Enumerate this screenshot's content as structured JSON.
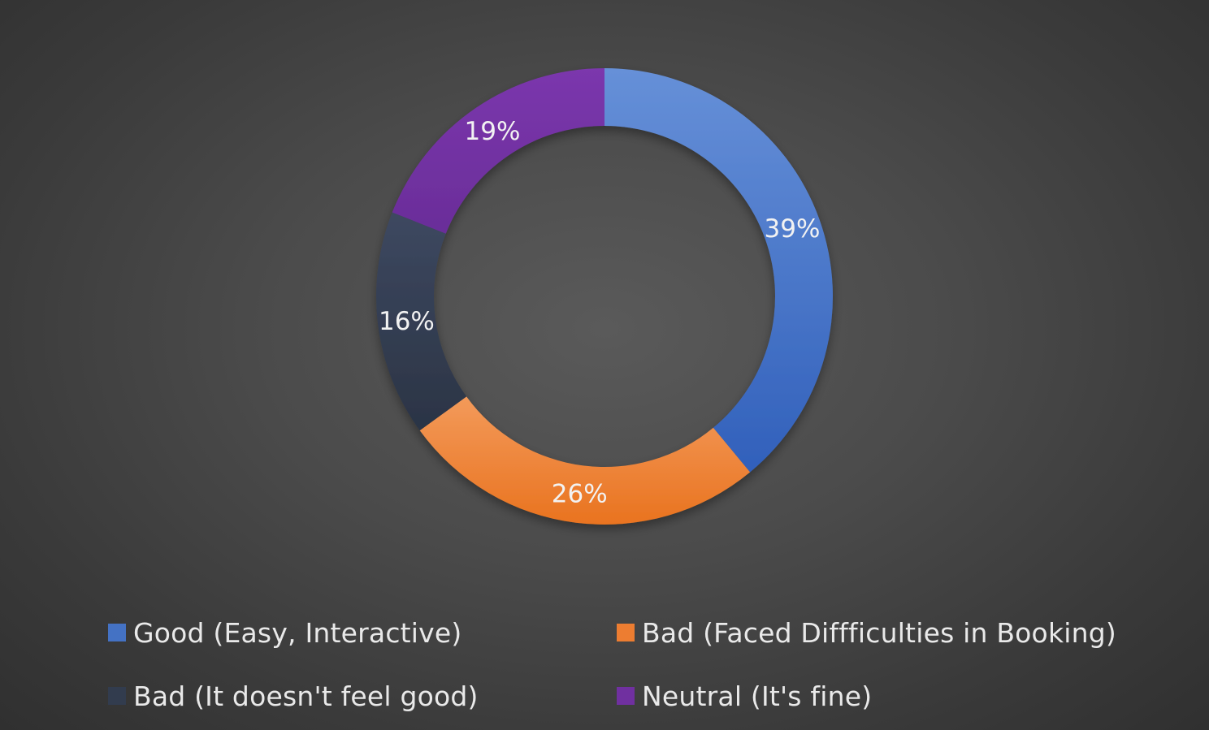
{
  "chart_data": {
    "type": "pie",
    "variant": "donut",
    "title": "",
    "slices": [
      {
        "label": "Good (Easy, Interactive)",
        "value": 39,
        "display": "39%",
        "color": "#4472c4"
      },
      {
        "label": "Bad (Faced Diffficulties in Booking)",
        "value": 26,
        "display": "26%",
        "color": "#ed7d31"
      },
      {
        "label": "Bad (It doesn't feel good)",
        "value": 16,
        "display": "16%",
        "color": "#323c4e"
      },
      {
        "label": "Neutral (It's fine)",
        "value": 19,
        "display": "19%",
        "color": "#7030a0"
      }
    ],
    "legend_position": "bottom"
  }
}
